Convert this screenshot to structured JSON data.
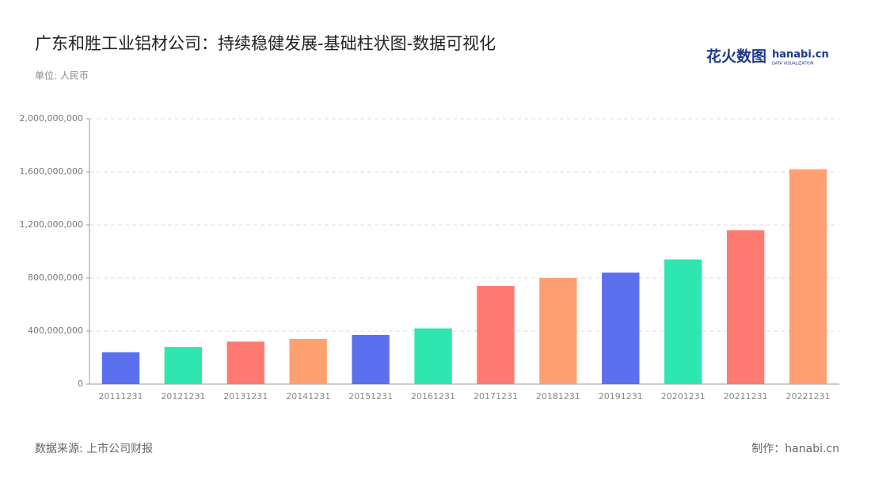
{
  "chart_data": {
    "type": "bar",
    "title": "广东和胜工业铝材公司：持续稳健发展-基础柱状图-数据可视化",
    "subtitle": "单位: 人民币",
    "source": "数据来源: 上市公司财报",
    "credit": "制作：hanabi.cn",
    "logo": [
      "花火数图",
      "hanabi.cn",
      "DATA VISUALIZATION"
    ],
    "categories": [
      "20111231",
      "20121231",
      "20131231",
      "20141231",
      "20151231",
      "20161231",
      "20171231",
      "20181231",
      "20191231",
      "20201231",
      "20211231",
      "20221231"
    ],
    "values": [
      240000000,
      280000000,
      320000000,
      340000000,
      370000000,
      420000000,
      740000000,
      800000000,
      840000000,
      940000000,
      1160000000,
      1620000000
    ],
    "colors": [
      "#5a70ee",
      "#2ee6b0",
      "#ff7a70",
      "#ffa070",
      "#5a70ee",
      "#2ee6b0",
      "#ff7a70",
      "#ffa070",
      "#5a70ee",
      "#2ee6b0",
      "#ff7a70",
      "#ffa070"
    ],
    "ylim": [
      0,
      2000000000
    ],
    "yticks": [
      0,
      {
        "value": 400000000,
        "label": "400,000,000"
      },
      {
        "value": 800000000,
        "label": "800,000,000"
      },
      {
        "value": 1200000000,
        "label": "1,200,000,000"
      },
      {
        "value": 1600000000,
        "label": "1,600,000,000"
      },
      {
        "value": 2000000000,
        "label": "2,000,000,000"
      }
    ],
    "grid": true
  }
}
